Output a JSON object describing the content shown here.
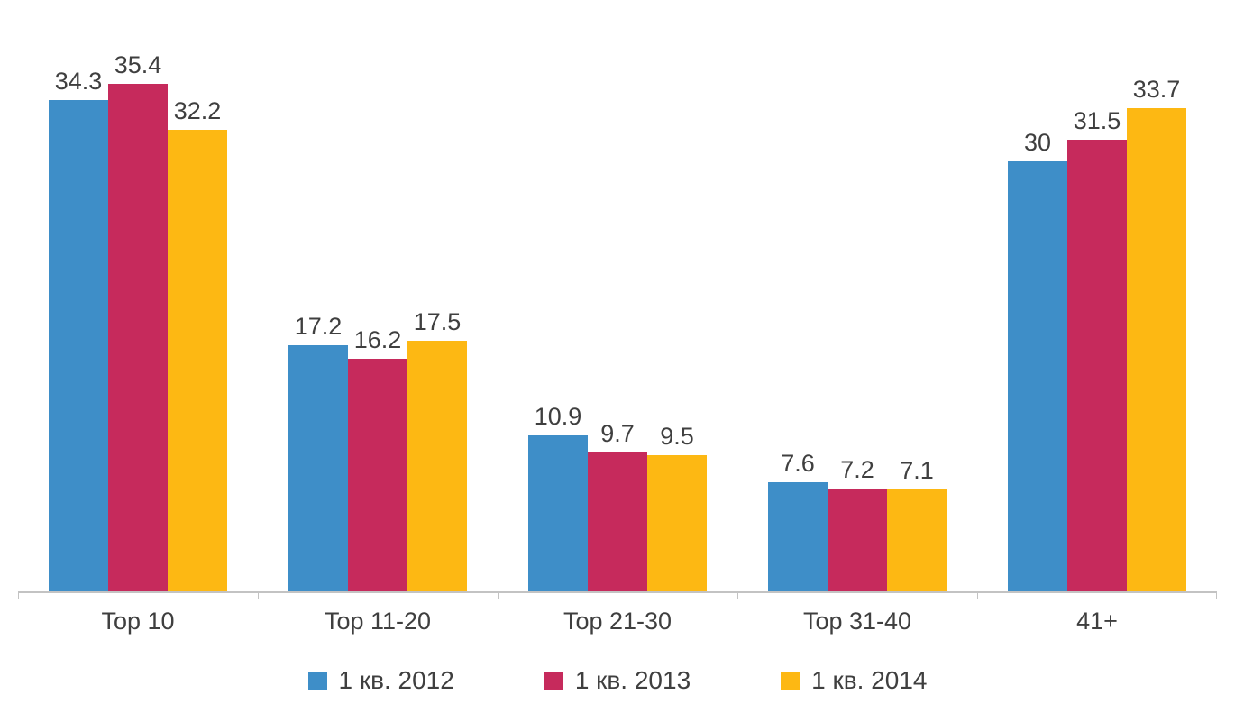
{
  "chart_data": {
    "type": "bar",
    "title": "",
    "xlabel": "",
    "ylabel": "",
    "categories": [
      "Top 10",
      "Top 11-20",
      "Top 21-30",
      "Top 31-40",
      "41+"
    ],
    "series": [
      {
        "name": "1 кв. 2012",
        "color": "#3e8ec8",
        "values": [
          34.3,
          17.2,
          10.9,
          7.6,
          30
        ]
      },
      {
        "name": "1 кв. 2013",
        "color": "#c62a5c",
        "values": [
          35.4,
          16.2,
          9.7,
          7.2,
          31.5
        ]
      },
      {
        "name": "1 кв. 2014",
        "color": "#fdb813",
        "values": [
          32.2,
          17.5,
          9.5,
          7.1,
          33.7
        ]
      }
    ],
    "ylim": [
      0,
      37
    ],
    "grid": false,
    "data_labels": true,
    "legend_position": "bottom",
    "axis_color": "#c3c3c3",
    "text_color": "#3f3f3f"
  }
}
